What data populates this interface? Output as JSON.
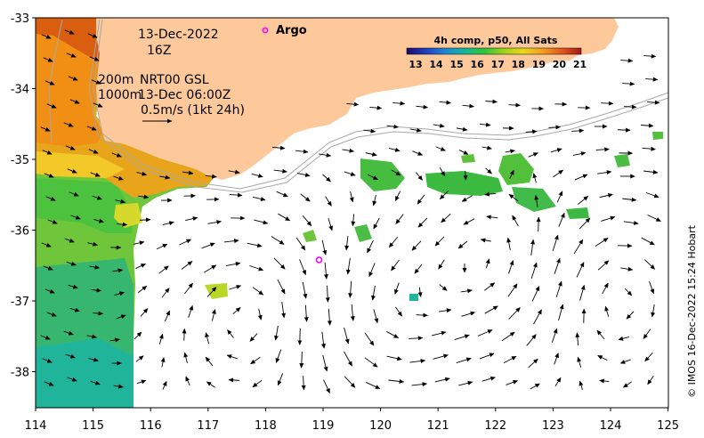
{
  "map": {
    "date": "13-Dec-2022",
    "hour": "16Z",
    "isobath_200": "200m",
    "isobath_1000": "1000m",
    "product": "NRT00 GSL",
    "product_time": "13-Dec 06:00Z",
    "velocity_scale": "0.5m/s (1kt 24h)",
    "argo_label": "Argo",
    "argo_float": {
      "lon": 118.93,
      "lat": -36.42
    },
    "colorbar": {
      "title": "4h comp, p50, All Sats",
      "min": 13,
      "max": 21.5,
      "ticks": [
        "13",
        "14",
        "15",
        "16",
        "17",
        "18",
        "19",
        "20",
        "21"
      ],
      "colors": [
        "#1a0a6e",
        "#1f3fbf",
        "#1f86d6",
        "#14b89a",
        "#2ec43a",
        "#9ed21c",
        "#e8d81a",
        "#f2a020",
        "#e0581c",
        "#a8161a"
      ]
    },
    "x_axis": {
      "ticks": [
        "114",
        "115",
        "116",
        "117",
        "118",
        "119",
        "120",
        "121",
        "122",
        "123",
        "124",
        "125"
      ]
    },
    "y_axis": {
      "ticks": [
        "-33",
        "-34",
        "-35",
        "-36",
        "-37",
        "-38"
      ]
    },
    "credit": "© IMOS 16-Dec-2022 15:24 Hobart",
    "colors": {
      "land": "#fdc99b",
      "argo": "#ff00ff"
    }
  }
}
